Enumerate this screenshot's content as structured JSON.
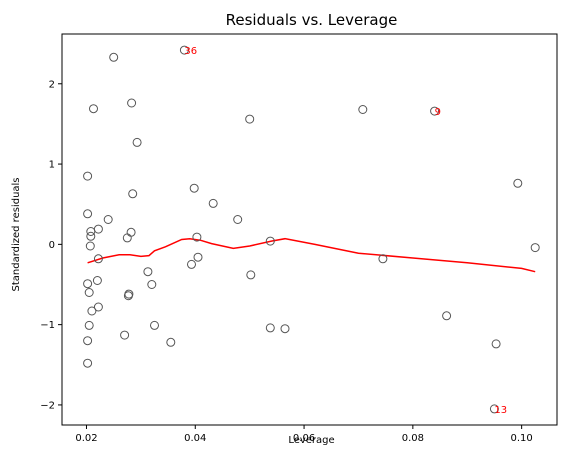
{
  "chart_data": {
    "type": "scatter",
    "title": "Residuals vs. Leverage",
    "xlabel": "Leverage",
    "ylabel": "Standardized residuals",
    "xlim": [
      0.0155,
      0.1065
    ],
    "ylim": [
      -2.25,
      2.62
    ],
    "xticks": [
      0.02,
      0.04,
      0.06,
      0.08,
      0.1
    ],
    "xtick_labels": [
      "0.02",
      "0.04",
      "0.06",
      "0.08",
      "0.10"
    ],
    "yticks": [
      -2,
      -1,
      0,
      1,
      2
    ],
    "ytick_labels": [
      "−2",
      "−1",
      "0",
      "1",
      "2"
    ],
    "grid": false,
    "points": [
      {
        "x": 0.038,
        "y": 2.42
      },
      {
        "x": 0.025,
        "y": 2.33
      },
      {
        "x": 0.0213,
        "y": 1.69
      },
      {
        "x": 0.0283,
        "y": 1.76
      },
      {
        "x": 0.0708,
        "y": 1.68
      },
      {
        "x": 0.084,
        "y": 1.66
      },
      {
        "x": 0.05,
        "y": 1.56
      },
      {
        "x": 0.0293,
        "y": 1.27
      },
      {
        "x": 0.0202,
        "y": 0.85
      },
      {
        "x": 0.0993,
        "y": 0.76
      },
      {
        "x": 0.0398,
        "y": 0.7
      },
      {
        "x": 0.0285,
        "y": 0.63
      },
      {
        "x": 0.0433,
        "y": 0.51
      },
      {
        "x": 0.0202,
        "y": 0.38
      },
      {
        "x": 0.024,
        "y": 0.31
      },
      {
        "x": 0.0478,
        "y": 0.31
      },
      {
        "x": 0.0222,
        "y": 0.19
      },
      {
        "x": 0.0208,
        "y": 0.16
      },
      {
        "x": 0.0282,
        "y": 0.15
      },
      {
        "x": 0.0208,
        "y": 0.1
      },
      {
        "x": 0.0275,
        "y": 0.08
      },
      {
        "x": 0.0403,
        "y": 0.09
      },
      {
        "x": 0.0538,
        "y": 0.04
      },
      {
        "x": 0.0207,
        "y": -0.02
      },
      {
        "x": 0.1025,
        "y": -0.04
      },
      {
        "x": 0.0222,
        "y": -0.18
      },
      {
        "x": 0.0405,
        "y": -0.16
      },
      {
        "x": 0.0745,
        "y": -0.18
      },
      {
        "x": 0.0393,
        "y": -0.25
      },
      {
        "x": 0.0313,
        "y": -0.34
      },
      {
        "x": 0.0502,
        "y": -0.38
      },
      {
        "x": 0.022,
        "y": -0.45
      },
      {
        "x": 0.0202,
        "y": -0.49
      },
      {
        "x": 0.032,
        "y": -0.5
      },
      {
        "x": 0.0205,
        "y": -0.6
      },
      {
        "x": 0.0278,
        "y": -0.62
      },
      {
        "x": 0.0277,
        "y": -0.64
      },
      {
        "x": 0.0222,
        "y": -0.78
      },
      {
        "x": 0.021,
        "y": -0.83
      },
      {
        "x": 0.0862,
        "y": -0.89
      },
      {
        "x": 0.0205,
        "y": -1.01
      },
      {
        "x": 0.0325,
        "y": -1.01
      },
      {
        "x": 0.0538,
        "y": -1.04
      },
      {
        "x": 0.0565,
        "y": -1.05
      },
      {
        "x": 0.027,
        "y": -1.13
      },
      {
        "x": 0.0202,
        "y": -1.2
      },
      {
        "x": 0.0355,
        "y": -1.22
      },
      {
        "x": 0.0953,
        "y": -1.24
      },
      {
        "x": 0.0202,
        "y": -1.48
      },
      {
        "x": 0.095,
        "y": -2.05
      }
    ],
    "annotations": [
      {
        "label": "36",
        "x": 0.038,
        "y": 2.42,
        "color": "#ff0000"
      },
      {
        "label": "9",
        "x": 0.084,
        "y": 1.66,
        "color": "#ff0000"
      },
      {
        "label": "13",
        "x": 0.095,
        "y": -2.05,
        "color": "#ff0000"
      }
    ],
    "smoother": {
      "color": "#ff0000",
      "x": [
        0.0202,
        0.023,
        0.026,
        0.028,
        0.03,
        0.0315,
        0.0325,
        0.0345,
        0.0375,
        0.039,
        0.041,
        0.043,
        0.047,
        0.05,
        0.054,
        0.0565,
        0.062,
        0.07,
        0.08,
        0.09,
        0.1,
        0.1025
      ],
      "y": [
        -0.23,
        -0.17,
        -0.13,
        -0.13,
        -0.15,
        -0.14,
        -0.08,
        -0.03,
        0.06,
        0.07,
        0.05,
        0.01,
        -0.05,
        -0.02,
        0.04,
        0.07,
        0.0,
        -0.11,
        -0.17,
        -0.23,
        -0.3,
        -0.34
      ]
    },
    "marker_color": "#555555",
    "axis_color": "#000000"
  }
}
